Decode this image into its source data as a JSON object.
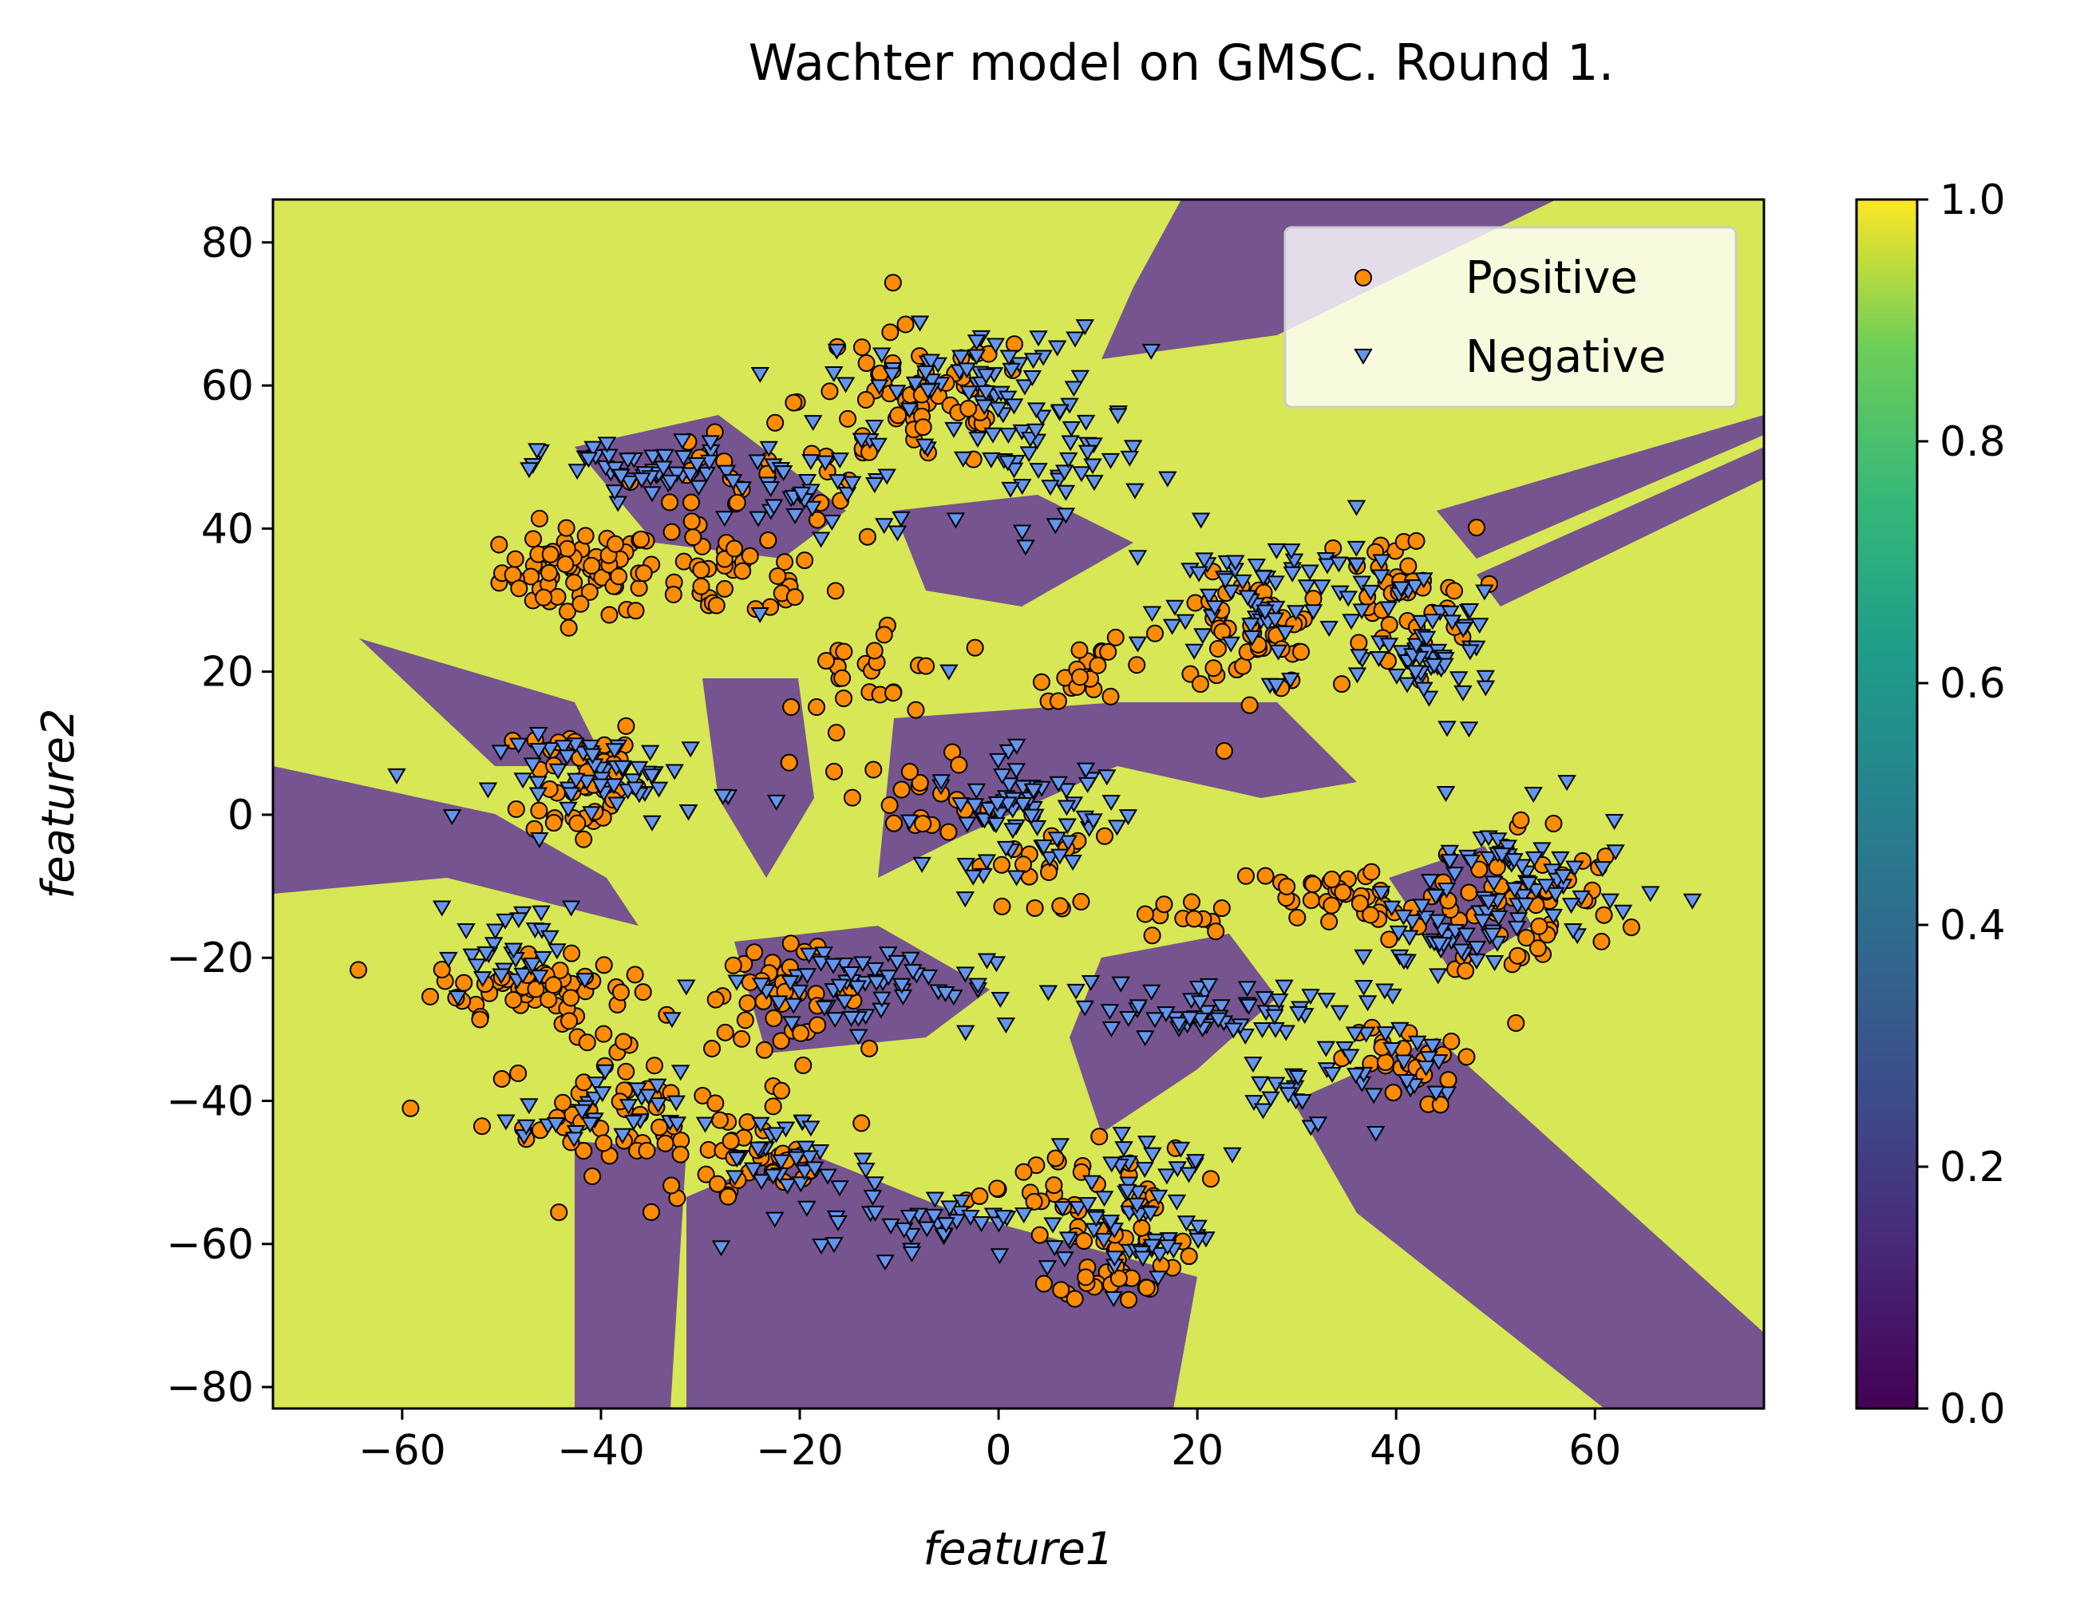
{
  "chart_data": {
    "type": "scatter",
    "title": "Wachter model on GMSC. Round 1.",
    "xlabel": "feature1",
    "ylabel": "feature2",
    "xlim": [
      -73,
      77
    ],
    "ylim": [
      -83,
      86
    ],
    "xticks": [
      -60,
      -40,
      -20,
      0,
      20,
      40,
      60
    ],
    "yticks": [
      -80,
      -60,
      -40,
      -20,
      0,
      20,
      40,
      60,
      80
    ],
    "xtick_labels": [
      "−60",
      "−40",
      "−20",
      "0",
      "20",
      "40",
      "60"
    ],
    "ytick_labels": [
      "−80",
      "−60",
      "−40",
      "−20",
      "0",
      "20",
      "40",
      "60",
      "80"
    ],
    "grid": false,
    "legend": {
      "position": "upper-right",
      "entries": [
        "Positive",
        "Negative"
      ]
    },
    "colorbar": {
      "range": [
        0,
        1
      ],
      "ticks": [
        "0.0",
        "0.2",
        "0.4",
        "0.6",
        "0.8",
        "1.0"
      ],
      "colormap": "viridis"
    },
    "background": {
      "type": "decision-regions",
      "high_color": "#d7e755",
      "low_color": "#75548f"
    },
    "series": [
      {
        "name": "Positive",
        "marker": "circle",
        "color": "#ff8c00",
        "clusters": [
          {
            "cx": -42,
            "cy": 34,
            "sx": 4,
            "sy": 3,
            "n": 70
          },
          {
            "cx": -27,
            "cy": 33,
            "sx": 5,
            "sy": 3,
            "n": 40
          },
          {
            "cx": -42,
            "cy": 5,
            "sx": 3,
            "sy": 5,
            "n": 50
          },
          {
            "cx": -47,
            "cy": -24,
            "sx": 5,
            "sy": 2,
            "n": 60
          },
          {
            "cx": -36,
            "cy": -42,
            "sx": 8,
            "sy": 4,
            "n": 60
          },
          {
            "cx": -22,
            "cy": -25,
            "sx": 4,
            "sy": 3,
            "n": 40
          },
          {
            "cx": -25,
            "cy": -50,
            "sx": 5,
            "sy": 3,
            "n": 30
          },
          {
            "cx": -8,
            "cy": 58,
            "sx": 6,
            "sy": 5,
            "n": 60
          },
          {
            "cx": -25,
            "cy": 45,
            "sx": 8,
            "sy": 4,
            "n": 30
          },
          {
            "cx": -12,
            "cy": 20,
            "sx": 4,
            "sy": 5,
            "n": 25
          },
          {
            "cx": -8,
            "cy": 3,
            "sx": 3,
            "sy": 3,
            "n": 20
          },
          {
            "cx": 10,
            "cy": 20,
            "sx": 3,
            "sy": 2,
            "n": 20
          },
          {
            "cx": 25,
            "cy": 25,
            "sx": 4,
            "sy": 4,
            "n": 50
          },
          {
            "cx": 40,
            "cy": 30,
            "sx": 4,
            "sy": 5,
            "n": 40
          },
          {
            "cx": 35,
            "cy": -12,
            "sx": 6,
            "sy": 3,
            "n": 40
          },
          {
            "cx": 53,
            "cy": -12,
            "sx": 5,
            "sy": 6,
            "n": 60
          },
          {
            "cx": 12,
            "cy": -62,
            "sx": 3,
            "sy": 3,
            "n": 40
          },
          {
            "cx": 5,
            "cy": -52,
            "sx": 8,
            "sy": 3,
            "n": 30
          },
          {
            "cx": 40,
            "cy": -35,
            "sx": 3,
            "sy": 3,
            "n": 25
          },
          {
            "cx": 4,
            "cy": -7,
            "sx": 3,
            "sy": 4,
            "n": 20
          },
          {
            "cx": 18,
            "cy": -15,
            "sx": 2,
            "sy": 2,
            "n": 10
          },
          {
            "cx": -40,
            "cy": -30,
            "sx": 2,
            "sy": 2,
            "n": 8
          }
        ]
      },
      {
        "name": "Negative",
        "marker": "triangle-down",
        "color": "#6495ed",
        "clusters": [
          {
            "cx": -36,
            "cy": 48,
            "sx": 5,
            "sy": 2,
            "n": 50
          },
          {
            "cx": -18,
            "cy": 45,
            "sx": 6,
            "sy": 4,
            "n": 40
          },
          {
            "cx": -3,
            "cy": 60,
            "sx": 7,
            "sy": 4,
            "n": 70
          },
          {
            "cx": 5,
            "cy": 50,
            "sx": 5,
            "sy": 4,
            "n": 40
          },
          {
            "cx": -38,
            "cy": 5,
            "sx": 6,
            "sy": 3,
            "n": 60
          },
          {
            "cx": 3,
            "cy": 0,
            "sx": 5,
            "sy": 4,
            "n": 70
          },
          {
            "cx": 28,
            "cy": 30,
            "sx": 7,
            "sy": 5,
            "n": 80
          },
          {
            "cx": 44,
            "cy": 22,
            "sx": 3,
            "sy": 4,
            "n": 50
          },
          {
            "cx": 52,
            "cy": -10,
            "sx": 6,
            "sy": 5,
            "n": 70
          },
          {
            "cx": 44,
            "cy": -18,
            "sx": 3,
            "sy": 2,
            "n": 30
          },
          {
            "cx": 22,
            "cy": -27,
            "sx": 8,
            "sy": 2,
            "n": 60
          },
          {
            "cx": -15,
            "cy": -24,
            "sx": 7,
            "sy": 3,
            "n": 60
          },
          {
            "cx": -50,
            "cy": -20,
            "sx": 3,
            "sy": 3,
            "n": 30
          },
          {
            "cx": -40,
            "cy": -42,
            "sx": 4,
            "sy": 3,
            "n": 30
          },
          {
            "cx": -22,
            "cy": -48,
            "sx": 4,
            "sy": 3,
            "n": 30
          },
          {
            "cx": -8,
            "cy": -56,
            "sx": 6,
            "sy": 3,
            "n": 40
          },
          {
            "cx": 13,
            "cy": -58,
            "sx": 4,
            "sy": 4,
            "n": 50
          },
          {
            "cx": 40,
            "cy": -35,
            "sx": 4,
            "sy": 4,
            "n": 25
          },
          {
            "cx": 28,
            "cy": -38,
            "sx": 3,
            "sy": 3,
            "n": 15
          },
          {
            "cx": 15,
            "cy": -48,
            "sx": 5,
            "sy": 2,
            "n": 15
          }
        ],
        "extra_points": [
          [
            14,
            36
          ],
          [
            45,
            3
          ],
          [
            -56,
            -13
          ],
          [
            -43,
            -13
          ],
          [
            -24,
            28
          ],
          [
            17,
            47
          ],
          [
            -5,
            20
          ]
        ]
      }
    ]
  }
}
